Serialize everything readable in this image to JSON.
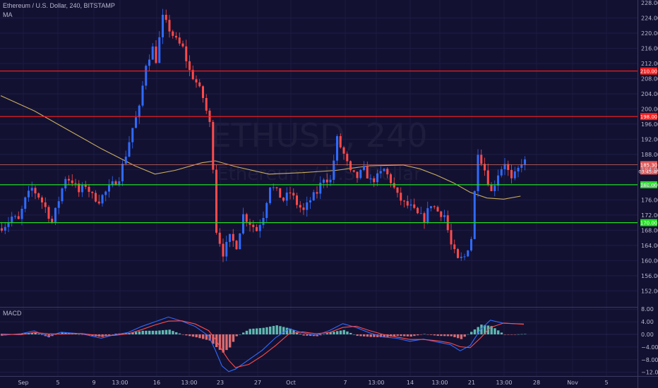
{
  "header": {
    "title": "Ethereum / U.S. Dollar, 240, BITSTAMP",
    "ma_label": "MA",
    "watermark_symbol": "ETHUSD, 240",
    "watermark_name": "Ethereum / U.S. Dollar"
  },
  "macd": {
    "label": "MACD"
  },
  "colors": {
    "background": "#131132",
    "bull": "#2f6bff",
    "bear": "#ff4a4a",
    "ma": "#c9ae5f",
    "resistance": "#ff2020",
    "support": "#22dd22",
    "price_line": "#d46c5c",
    "macd_line": "#2f6bff",
    "signal_line": "#ff4a4a",
    "hist_pos": "#6cd6c6",
    "hist_neg": "#ff7a7a"
  },
  "chart_data": [
    {
      "type": "candlestick",
      "title": "Ethereum / U.S. Dollar, 240, BITSTAMP",
      "y_ticks": [
        152,
        156,
        160,
        164,
        168,
        172,
        176,
        180,
        184,
        188,
        192,
        196,
        200,
        204,
        208,
        212,
        216,
        220,
        224,
        228
      ],
      "y_tick_labels": [
        "152.00",
        "156.00",
        "160.00",
        "164.00",
        "168.00",
        "172.00",
        "176.00",
        "180.00",
        "184.00",
        "188.00",
        "192.00",
        "196.00",
        "200.00",
        "204.00",
        "208.00",
        "212.00",
        "216.00",
        "220.00",
        "224.00",
        "228.00"
      ],
      "ylim": [
        149.7,
        228.9
      ],
      "x_ticks": [
        "Sep",
        "5",
        "9",
        "13:00",
        "16",
        "13:00",
        "23",
        "27",
        "Oct",
        "7",
        "13:00",
        "14",
        "13:00",
        "21",
        "13:00",
        "28",
        "Nov",
        "5"
      ],
      "horizontal_levels": [
        {
          "value": 210.0,
          "label": "210.00",
          "color": "#ff2020"
        },
        {
          "value": 198.0,
          "label": "198.00",
          "color": "#ff2020"
        },
        {
          "value": 180.0,
          "label": "180.00",
          "color": "#22dd22"
        },
        {
          "value": 170.0,
          "label": "170.00",
          "color": "#22dd22"
        }
      ],
      "last_price": {
        "value": 185.3,
        "label": "185.30",
        "countdown": "03:45:46"
      },
      "price_path": [
        [
          0,
          168.5
        ],
        [
          2,
          169.5
        ],
        [
          4,
          171.5
        ],
        [
          6,
          170.5
        ],
        [
          8,
          176
        ],
        [
          10,
          179
        ],
        [
          12,
          177
        ],
        [
          14,
          174
        ],
        [
          16,
          170
        ],
        [
          18,
          176
        ],
        [
          20,
          182
        ],
        [
          22,
          181
        ],
        [
          24,
          178
        ],
        [
          26,
          180
        ],
        [
          28,
          177
        ],
        [
          30,
          176
        ],
        [
          32,
          178
        ],
        [
          34,
          180
        ],
        [
          36,
          182
        ],
        [
          38,
          188
        ],
        [
          40,
          195
        ],
        [
          42,
          200
        ],
        [
          44,
          212
        ],
        [
          46,
          216
        ],
        [
          47,
          213
        ],
        [
          49,
          224
        ],
        [
          51,
          221
        ],
        [
          53,
          218
        ],
        [
          55,
          216
        ],
        [
          57,
          210
        ],
        [
          59,
          207
        ],
        [
          61,
          203
        ],
        [
          63,
          196
        ],
        [
          64,
          185
        ],
        [
          65,
          168
        ],
        [
          67,
          162
        ],
        [
          69,
          166
        ],
        [
          71,
          164
        ],
        [
          73,
          172
        ],
        [
          75,
          170
        ],
        [
          77,
          168
        ],
        [
          79,
          172
        ],
        [
          81,
          180
        ],
        [
          83,
          178
        ],
        [
          85,
          176
        ],
        [
          87,
          178
        ],
        [
          89,
          175
        ],
        [
          91,
          173
        ],
        [
          93,
          176
        ],
        [
          95,
          178
        ],
        [
          97,
          182
        ],
        [
          99,
          181
        ],
        [
          101,
          192
        ],
        [
          103,
          188
        ],
        [
          105,
          183
        ],
        [
          107,
          182
        ],
        [
          109,
          184
        ],
        [
          111,
          181
        ],
        [
          113,
          182
        ],
        [
          115,
          184
        ],
        [
          117,
          181
        ],
        [
          119,
          177
        ],
        [
          121,
          175
        ],
        [
          123,
          174
        ],
        [
          125,
          172
        ],
        [
          127,
          171
        ],
        [
          129,
          175
        ],
        [
          131,
          173
        ],
        [
          133,
          172
        ],
        [
          135,
          164
        ],
        [
          137,
          160
        ],
        [
          139,
          161
        ],
        [
          141,
          166
        ],
        [
          142,
          178
        ],
        [
          143,
          189
        ],
        [
          145,
          184
        ],
        [
          147,
          178
        ],
        [
          149,
          183
        ],
        [
          151,
          186
        ],
        [
          153,
          181
        ],
        [
          155,
          184
        ],
        [
          156,
          186
        ]
      ],
      "moving_average": [
        [
          0,
          203.5
        ],
        [
          10,
          199.5
        ],
        [
          20,
          194.5
        ],
        [
          30,
          189.5
        ],
        [
          40,
          185
        ],
        [
          46,
          182.8
        ],
        [
          52,
          183.8
        ],
        [
          60,
          185.8
        ],
        [
          64,
          186.3
        ],
        [
          70,
          184.8
        ],
        [
          80,
          182.8
        ],
        [
          90,
          183.2
        ],
        [
          100,
          183.8
        ],
        [
          110,
          185
        ],
        [
          120,
          185.2
        ],
        [
          125,
          184.2
        ],
        [
          130,
          182.5
        ],
        [
          135,
          180.5
        ],
        [
          140,
          178
        ],
        [
          145,
          176.5
        ],
        [
          150,
          176.2
        ],
        [
          155,
          177
        ]
      ]
    },
    {
      "type": "macd",
      "title": "MACD",
      "y_ticks": [
        -12,
        -8,
        -4,
        0,
        4,
        8
      ],
      "y_tick_labels": [
        "−12.00",
        "−8.00",
        "−4.00",
        "0.00",
        "4.00",
        "8.00"
      ],
      "ylim": [
        -13.6,
        8.8
      ],
      "macd_line": [
        [
          0,
          -0.3
        ],
        [
          6,
          0.2
        ],
        [
          10,
          1.1
        ],
        [
          14,
          -0.6
        ],
        [
          18,
          0.7
        ],
        [
          24,
          0.2
        ],
        [
          30,
          -1.2
        ],
        [
          34,
          -0.1
        ],
        [
          38,
          0.6
        ],
        [
          42,
          2.5
        ],
        [
          46,
          4.0
        ],
        [
          50,
          5.5
        ],
        [
          54,
          4.2
        ],
        [
          58,
          2.5
        ],
        [
          62,
          -0.5
        ],
        [
          64,
          -5
        ],
        [
          66,
          -10
        ],
        [
          68,
          -11.8
        ],
        [
          70,
          -11
        ],
        [
          74,
          -8
        ],
        [
          78,
          -5
        ],
        [
          82,
          -1
        ],
        [
          86,
          1.8
        ],
        [
          90,
          0.5
        ],
        [
          94,
          -0.3
        ],
        [
          98,
          1.2
        ],
        [
          102,
          3.4
        ],
        [
          106,
          2.2
        ],
        [
          110,
          0.5
        ],
        [
          114,
          -0.8
        ],
        [
          118,
          -1.2
        ],
        [
          122,
          -2.2
        ],
        [
          126,
          -1.5
        ],
        [
          130,
          -2.4
        ],
        [
          134,
          -3.2
        ],
        [
          137,
          -5.2
        ],
        [
          140,
          -3.5
        ],
        [
          143,
          1.5
        ],
        [
          146,
          4.5
        ],
        [
          150,
          3.5
        ],
        [
          156,
          3.3
        ]
      ],
      "signal_line": [
        [
          0,
          0.1
        ],
        [
          6,
          -0.1
        ],
        [
          10,
          0.6
        ],
        [
          14,
          0.2
        ],
        [
          18,
          0.1
        ],
        [
          24,
          0.3
        ],
        [
          30,
          -0.5
        ],
        [
          34,
          -0.3
        ],
        [
          38,
          0.2
        ],
        [
          42,
          1.5
        ],
        [
          46,
          3.0
        ],
        [
          50,
          4.2
        ],
        [
          54,
          4.3
        ],
        [
          58,
          3.3
        ],
        [
          62,
          1.2
        ],
        [
          64,
          -1.5
        ],
        [
          66,
          -5
        ],
        [
          68,
          -8.2
        ],
        [
          70,
          -10.5
        ],
        [
          74,
          -9.5
        ],
        [
          78,
          -6.8
        ],
        [
          82,
          -3.5
        ],
        [
          86,
          0.2
        ],
        [
          90,
          0.8
        ],
        [
          94,
          0.2
        ],
        [
          98,
          0.6
        ],
        [
          102,
          2.2
        ],
        [
          106,
          2.6
        ],
        [
          110,
          1.2
        ],
        [
          114,
          0
        ],
        [
          118,
          -0.8
        ],
        [
          122,
          -1.6
        ],
        [
          126,
          -1.6
        ],
        [
          130,
          -2.0
        ],
        [
          134,
          -2.7
        ],
        [
          137,
          -3.9
        ],
        [
          140,
          -4.2
        ],
        [
          143,
          -1.2
        ],
        [
          146,
          2.2
        ],
        [
          150,
          3.6
        ],
        [
          156,
          3.2
        ]
      ]
    }
  ]
}
